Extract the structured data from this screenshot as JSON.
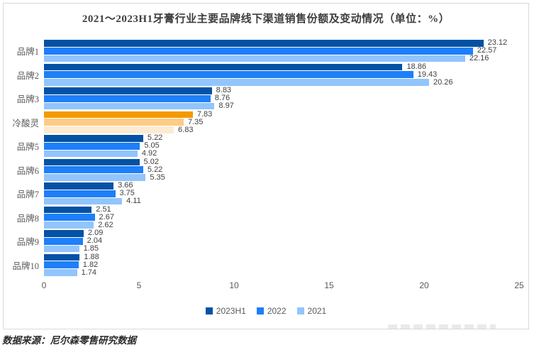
{
  "title": "2021～2023H1牙膏行业主要品牌线下渠道销售份额及变动情况（单位：%）",
  "source_note": "数据来源：尼尔森零售研究数据",
  "chart_data": {
    "type": "bar",
    "orientation": "horizontal",
    "title": "2021～2023H1牙膏行业主要品牌线下渠道销售份额及变动情况（单位：%）",
    "categories": [
      "品牌1",
      "品牌2",
      "品牌3",
      "冷酸灵",
      "品牌5",
      "品牌6",
      "品牌7",
      "品牌8",
      "品牌9",
      "品牌10"
    ],
    "series": [
      {
        "name": "2023H1",
        "color": "#0452A5",
        "values": [
          23.12,
          18.86,
          8.83,
          7.83,
          5.22,
          5.02,
          3.66,
          2.51,
          2.09,
          1.88
        ]
      },
      {
        "name": "2022",
        "color": "#1E7FF8",
        "values": [
          22.57,
          19.43,
          8.76,
          7.35,
          5.05,
          5.22,
          3.75,
          2.67,
          2.04,
          1.82
        ]
      },
      {
        "name": "2021",
        "color": "#92C5FC",
        "values": [
          22.16,
          20.26,
          8.97,
          6.83,
          4.92,
          5.35,
          4.11,
          2.62,
          1.85,
          1.74
        ]
      }
    ],
    "highlight": {
      "category": "冷酸灵",
      "index": 3,
      "colors": [
        "#F49A01",
        "#FDCC85",
        "#FCEBD2"
      ]
    },
    "x_ticks": [
      0,
      5,
      10,
      15,
      20,
      25
    ],
    "xlim": [
      0,
      25
    ],
    "xlabel": "",
    "ylabel": "",
    "grid": false,
    "value_labels": true,
    "legend_position": "bottom",
    "frame_border_color": "#D9D9D9"
  }
}
